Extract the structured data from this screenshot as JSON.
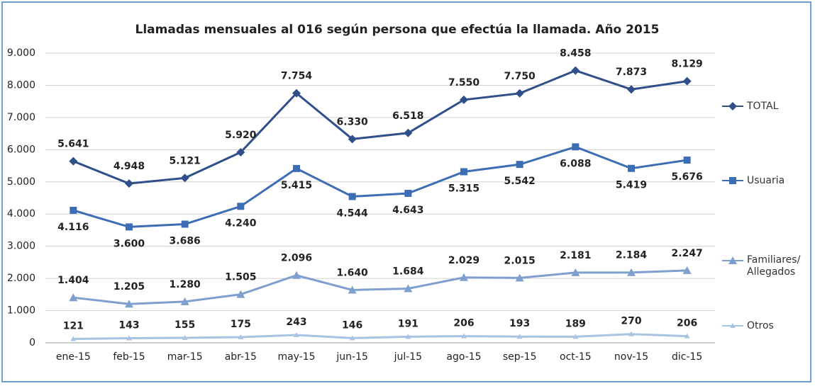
{
  "chart_data": {
    "type": "line",
    "title": "Llamadas mensuales al 016 según persona que efectúa la llamada. Año 2015",
    "categories": [
      "ene-15",
      "feb-15",
      "mar-15",
      "abr-15",
      "may-15",
      "jun-15",
      "jul-15",
      "ago-15",
      "sep-15",
      "oct-15",
      "nov-15",
      "dic-15"
    ],
    "ylim": [
      0,
      9000
    ],
    "yticks": [
      0,
      {
        "value": 1000,
        "label": "1.000"
      },
      {
        "value": 2000,
        "label": "2.000"
      },
      {
        "value": 3000,
        "label": "3.000"
      },
      {
        "value": 4000,
        "label": "4.000"
      },
      {
        "value": 5000,
        "label": "5.000"
      },
      {
        "value": 6000,
        "label": "6.000"
      },
      {
        "value": 7000,
        "label": "7.000"
      },
      {
        "value": 8000,
        "label": "8.000"
      },
      {
        "value": 9000,
        "label": "9.000"
      }
    ],
    "grid": true,
    "legend": "right",
    "series": [
      {
        "name": "TOTAL",
        "color": "#2e4f8a",
        "values": [
          5641,
          4948,
          5121,
          5920,
          7754,
          6330,
          6518,
          7550,
          7750,
          8458,
          7873,
          8129
        ],
        "value_labels": [
          "5.641",
          "4.948",
          "5.121",
          "5.920",
          "7.754",
          "6.330",
          "6.518",
          "7.550",
          "7.750",
          "8.458",
          "7.873",
          "8.129"
        ]
      },
      {
        "name": "Usuaria",
        "color": "#3d6db5",
        "values": [
          4116,
          3600,
          3686,
          4240,
          5415,
          4544,
          4643,
          5315,
          5542,
          6088,
          5419,
          5676
        ],
        "value_labels": [
          "4.116",
          "3.600",
          "3.686",
          "4.240",
          "5.415",
          "4.544",
          "4.643",
          "5.315",
          "5.542",
          "6.088",
          "5.419",
          "5.676"
        ]
      },
      {
        "name": "Familiares/ Allegados",
        "color": "#7f9fcf",
        "values": [
          1404,
          1205,
          1280,
          1505,
          2096,
          1640,
          1684,
          2029,
          2015,
          2181,
          2184,
          2247
        ],
        "value_labels": [
          "1.404",
          "1.205",
          "1.280",
          "1.505",
          "2.096",
          "1.640",
          "1.684",
          "2.029",
          "2.015",
          "2.181",
          "2.184",
          "2.247"
        ]
      },
      {
        "name": "Otros",
        "color": "#a9c3e3",
        "values": [
          121,
          143,
          155,
          175,
          243,
          146,
          191,
          206,
          193,
          189,
          270,
          206
        ]
      }
    ]
  }
}
